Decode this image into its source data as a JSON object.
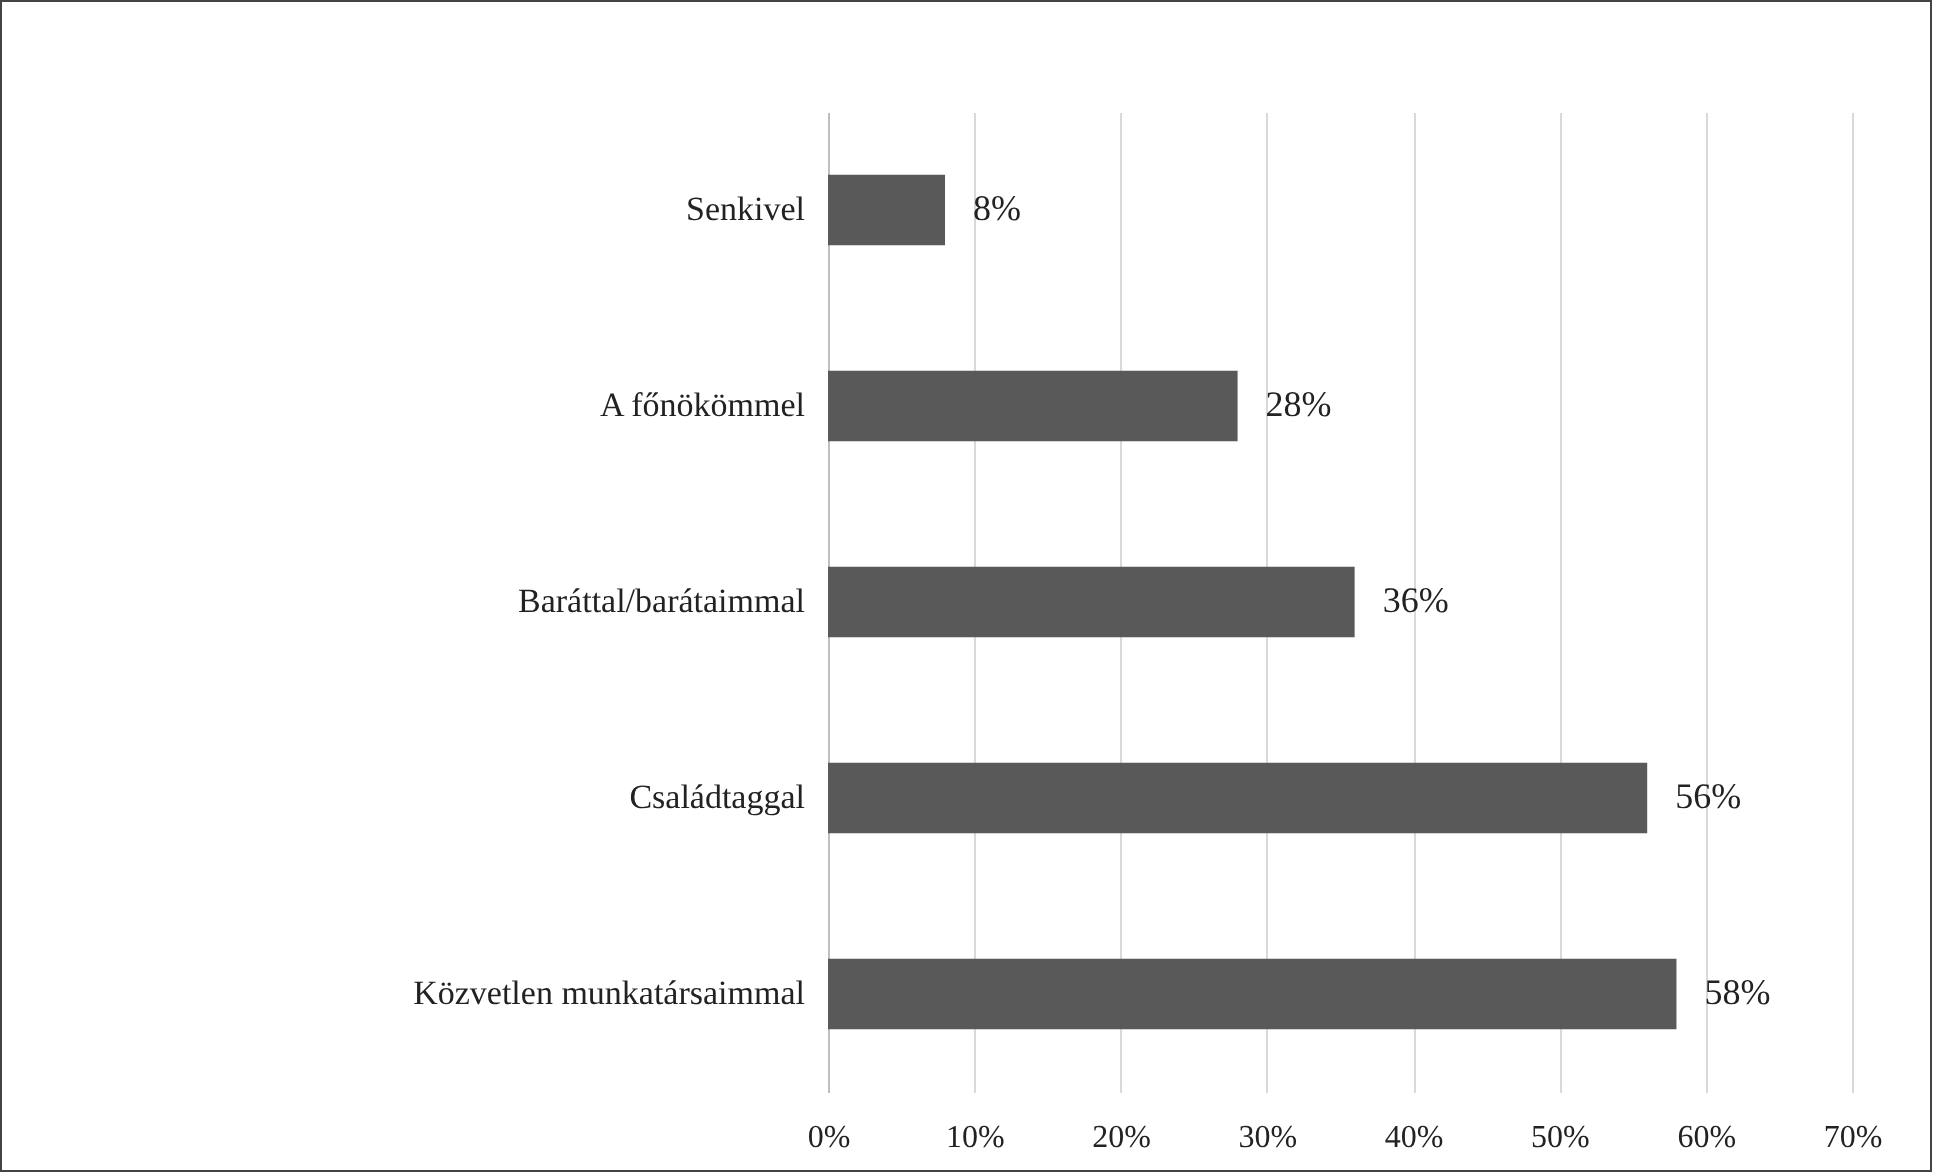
{
  "chart_data": {
    "type": "bar",
    "orientation": "horizontal",
    "categories": [
      "Senkivel",
      "A főnökömmel",
      "Baráttal/barátaimmal",
      "Családtaggal",
      "Közvetlen munkatársaimmal"
    ],
    "values": [
      8,
      28,
      36,
      56,
      58
    ],
    "value_labels": [
      "8%",
      "28%",
      "36%",
      "56%",
      "58%"
    ],
    "color": "#595959",
    "xlim": [
      0,
      70
    ],
    "xticks": [
      {
        "value": 0,
        "label": "0%"
      },
      {
        "value": 10,
        "label": "10%"
      },
      {
        "value": 20,
        "label": "20%"
      },
      {
        "value": 30,
        "label": "30%"
      },
      {
        "value": 40,
        "label": "40%"
      },
      {
        "value": 50,
        "label": "50%"
      },
      {
        "value": 60,
        "label": "60%"
      },
      {
        "value": 70,
        "label": "70%"
      }
    ],
    "grid": "x"
  }
}
